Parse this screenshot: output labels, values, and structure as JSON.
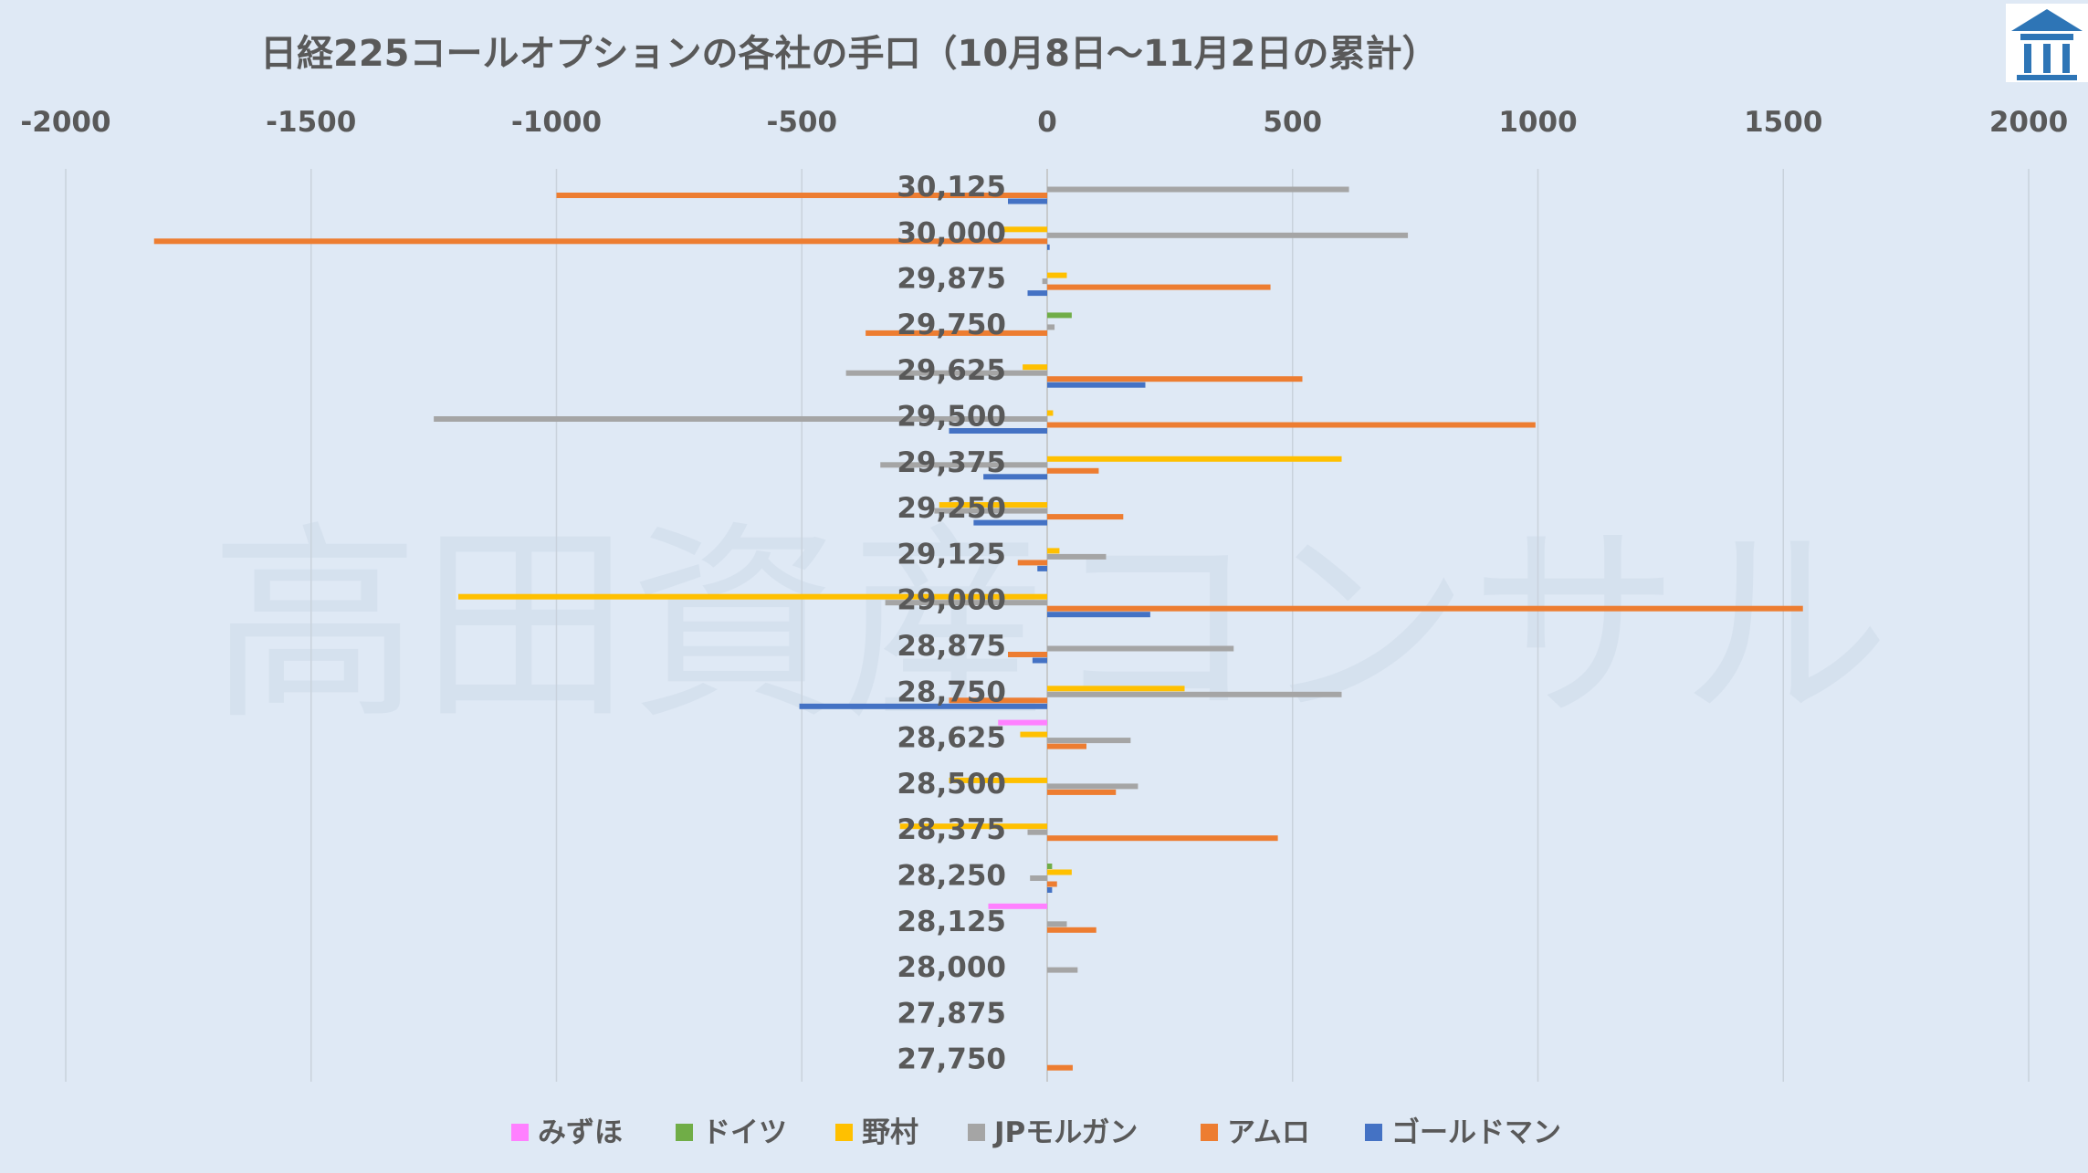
{
  "chart_data": {
    "type": "bar",
    "orientation": "horizontal",
    "title": "日経225コールオプションの各社の手口（10月8日～11月2日の累計）",
    "xlim": [
      -2000,
      2000
    ],
    "x_ticks": [
      -2000,
      -1500,
      -1000,
      -500,
      0,
      500,
      1000,
      1500,
      2000
    ],
    "x_tick_labels": [
      "-2000",
      "-1500",
      "-1000",
      "-500",
      "0",
      "500",
      "1000",
      "1500",
      "2000"
    ],
    "grid": true,
    "legend_position": "bottom",
    "categories": [
      "30,125",
      "30,000",
      "29,875",
      "29,750",
      "29,625",
      "29,500",
      "29,375",
      "29,250",
      "29,125",
      "29,000",
      "28,875",
      "28,750",
      "28,625",
      "28,500",
      "28,375",
      "28,250",
      "28,125",
      "28,000",
      "27,875",
      "27,750"
    ],
    "series": [
      {
        "name": "みずほ",
        "color": "#ff80ff",
        "values": [
          0,
          0,
          0,
          0,
          0,
          0,
          0,
          0,
          0,
          0,
          0,
          0,
          -100,
          0,
          0,
          0,
          -120,
          0,
          0,
          0
        ]
      },
      {
        "name": "ドイツ",
        "color": "#70ad47",
        "values": [
          0,
          0,
          0,
          50,
          0,
          0,
          0,
          0,
          0,
          0,
          0,
          0,
          0,
          0,
          0,
          10,
          0,
          0,
          0,
          0
        ]
      },
      {
        "name": "野村",
        "color": "#ffc000",
        "values": [
          0,
          -90,
          40,
          0,
          -50,
          12,
          600,
          -220,
          25,
          -1200,
          0,
          280,
          -55,
          -200,
          -300,
          50,
          0,
          0,
          0,
          0
        ]
      },
      {
        "name": "JPモルガン",
        "color": "#a5a5a5",
        "values": [
          615,
          735,
          -10,
          15,
          -410,
          -1250,
          -340,
          -230,
          120,
          -330,
          380,
          600,
          170,
          185,
          -40,
          -35,
          40,
          62,
          0,
          0
        ]
      },
      {
        "name": "アムロ",
        "color": "#ed7d31",
        "values": [
          -1000,
          -1820,
          455,
          -370,
          520,
          995,
          105,
          155,
          -60,
          1540,
          -80,
          -200,
          80,
          140,
          470,
          20,
          100,
          0,
          0,
          52
        ]
      },
      {
        "name": "ゴールドマン",
        "color": "#4472c4",
        "values": [
          -80,
          5,
          -40,
          0,
          200,
          -200,
          -130,
          -150,
          -20,
          210,
          -30,
          -505,
          0,
          0,
          0,
          10,
          0,
          0,
          0,
          0
        ]
      }
    ]
  },
  "logo": {
    "icon": "building-logo-icon",
    "color": "#2e75b6"
  },
  "watermark": "高田資産コンサル"
}
